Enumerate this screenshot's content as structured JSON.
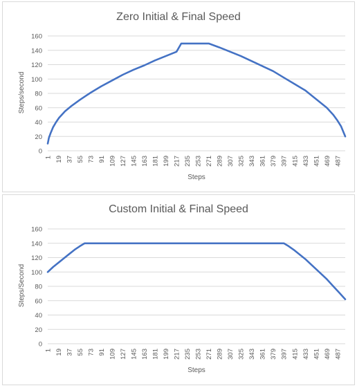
{
  "chart_data": [
    {
      "type": "line",
      "title": "Zero Initial & Final Speed",
      "xlabel": "Steps",
      "ylabel": "Steps/second",
      "ylim": [
        0,
        160
      ],
      "yticks": [
        0,
        20,
        40,
        60,
        80,
        100,
        120,
        140,
        160
      ],
      "xlim": [
        1,
        500
      ],
      "xticks": [
        1,
        19,
        37,
        55,
        73,
        91,
        109,
        127,
        145,
        163,
        181,
        199,
        217,
        235,
        253,
        271,
        289,
        307,
        325,
        343,
        361,
        379,
        397,
        415,
        433,
        451,
        469,
        487
      ],
      "grid": true,
      "series": [
        {
          "color": "#4472c4",
          "x": [
            1,
            3,
            6,
            10,
            15,
            20,
            30,
            40,
            55,
            73,
            91,
            109,
            127,
            145,
            163,
            181,
            199,
            217,
            225,
            271,
            289,
            307,
            325,
            343,
            361,
            379,
            397,
            415,
            433,
            451,
            469,
            480,
            487,
            493,
            500
          ],
          "y": [
            10,
            18,
            25,
            33,
            40,
            46,
            55,
            62,
            71,
            81,
            90,
            98,
            106,
            113,
            119,
            126,
            132,
            138,
            149.5,
            149.5,
            144,
            138,
            132,
            125,
            118,
            111,
            102,
            93,
            84,
            72,
            60,
            50,
            42,
            34,
            20
          ]
        }
      ]
    },
    {
      "type": "line",
      "title": "Custom Initial & Final Speed",
      "xlabel": "Steps",
      "ylabel": "Steps/Second",
      "ylim": [
        0,
        160
      ],
      "yticks": [
        0,
        20,
        40,
        60,
        80,
        100,
        120,
        140,
        160
      ],
      "xlim": [
        1,
        500
      ],
      "xticks": [
        1,
        19,
        37,
        55,
        73,
        91,
        109,
        127,
        145,
        163,
        181,
        199,
        217,
        235,
        253,
        271,
        289,
        307,
        325,
        343,
        361,
        379,
        397,
        415,
        433,
        451,
        469,
        487
      ],
      "grid": true,
      "series": [
        {
          "color": "#4472c4",
          "x": [
            1,
            10,
            19,
            28,
            37,
            46,
            55,
            63,
            397,
            405,
            415,
            433,
            451,
            469,
            480,
            490,
            500
          ],
          "y": [
            100,
            107,
            113,
            119,
            125,
            131,
            136,
            140,
            140,
            136,
            130,
            118,
            104,
            90,
            80,
            71,
            62
          ]
        }
      ]
    }
  ]
}
